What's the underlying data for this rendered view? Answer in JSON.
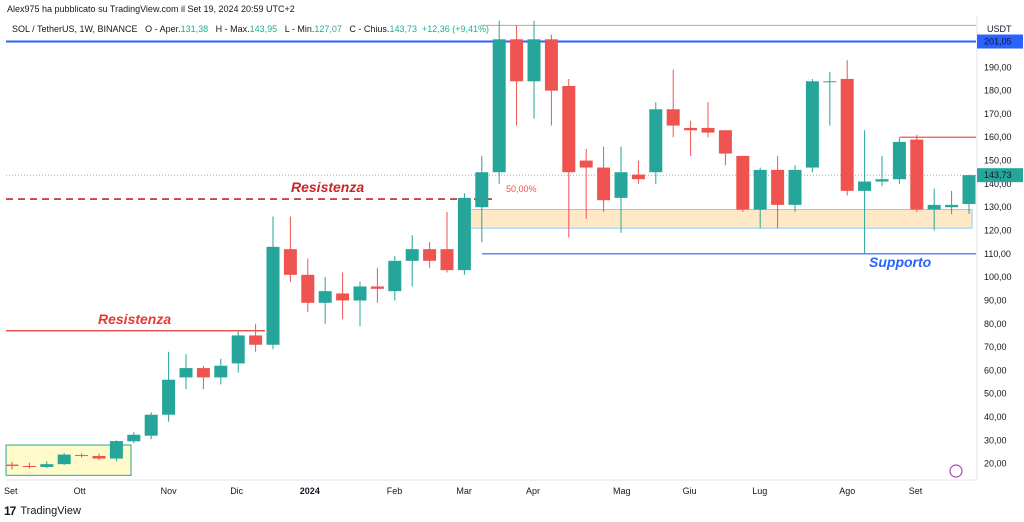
{
  "header": {
    "publisher": "Alex975 ha pubblicato su TradingView.com il Set 19, 2024 20:59 UTC+2",
    "symbol": "SOL / TetherUS, 1W, BINANCE",
    "open_label": "O - Aper.",
    "open": "131,38",
    "high_label": "H - Max.",
    "high": "143,95",
    "low_label": "L - Min.",
    "low": "127,07",
    "close_label": "C - Chius.",
    "close": "143,73",
    "change": "+12,36 (+9,41%)",
    "unit": "USDT"
  },
  "footer": {
    "logo": "17",
    "brand": "TradingView"
  },
  "colors": {
    "up": "#26a69a",
    "down": "#ef5350",
    "resistance_high": "#2962ff",
    "support": "#2962ff",
    "resistance": "#f23645",
    "zone": "#ffe0b2"
  },
  "chart_data": {
    "type": "candlestick",
    "timeframe": "1W",
    "ylim": [
      13,
      212
    ],
    "yticks": [
      20,
      30,
      40,
      50,
      60,
      70,
      80,
      90,
      100,
      110,
      120,
      130,
      140,
      150,
      160,
      170,
      180,
      190
    ],
    "ytick_labels": [
      "20,00",
      "30,00",
      "40,00",
      "50,00",
      "60,00",
      "70,00",
      "80,00",
      "90,00",
      "100,00",
      "110,00",
      "120,00",
      "130,00",
      "140,00",
      "150,00",
      "160,00",
      "170,00",
      "180,00",
      "190,00"
    ],
    "xtick_labels": [
      {
        "label": "Set",
        "idx": 0,
        "bold": false
      },
      {
        "label": "Ott",
        "idx": 4,
        "bold": false
      },
      {
        "label": "Nov",
        "idx": 9,
        "bold": false
      },
      {
        "label": "Dic",
        "idx": 13,
        "bold": false
      },
      {
        "label": "2024",
        "idx": 17,
        "bold": true
      },
      {
        "label": "Feb",
        "idx": 22,
        "bold": false
      },
      {
        "label": "Mar",
        "idx": 26,
        "bold": false
      },
      {
        "label": "Apr",
        "idx": 30,
        "bold": false
      },
      {
        "label": "Mag",
        "idx": 35,
        "bold": false
      },
      {
        "label": "Giu",
        "idx": 39,
        "bold": false
      },
      {
        "label": "Lug",
        "idx": 43,
        "bold": false
      },
      {
        "label": "Ago",
        "idx": 48,
        "bold": false
      },
      {
        "label": "Set",
        "idx": 52,
        "bold": false
      }
    ],
    "candles": [
      {
        "o": 19.6,
        "h": 20.8,
        "l": 17.5,
        "c": 19.0
      },
      {
        "o": 19.0,
        "h": 20.4,
        "l": 17.9,
        "c": 18.6
      },
      {
        "o": 18.6,
        "h": 21.0,
        "l": 18.1,
        "c": 19.8
      },
      {
        "o": 19.8,
        "h": 24.5,
        "l": 19.4,
        "c": 23.9
      },
      {
        "o": 23.7,
        "h": 24.5,
        "l": 22.7,
        "c": 23.4
      },
      {
        "o": 23.3,
        "h": 24.3,
        "l": 21.5,
        "c": 22.2
      },
      {
        "o": 22.2,
        "h": 30.0,
        "l": 21.0,
        "c": 29.7
      },
      {
        "o": 29.6,
        "h": 33.5,
        "l": 28.8,
        "c": 32.4
      },
      {
        "o": 32.0,
        "h": 42.0,
        "l": 30.5,
        "c": 41.0
      },
      {
        "o": 41.0,
        "h": 68.0,
        "l": 38.0,
        "c": 56.0
      },
      {
        "o": 57.0,
        "h": 67.0,
        "l": 52.0,
        "c": 61.0
      },
      {
        "o": 61.0,
        "h": 62.0,
        "l": 52.0,
        "c": 57.0
      },
      {
        "o": 57.0,
        "h": 65.0,
        "l": 54.0,
        "c": 62.0
      },
      {
        "o": 63.0,
        "h": 77.0,
        "l": 59.0,
        "c": 75.0
      },
      {
        "o": 75.0,
        "h": 80.0,
        "l": 68.0,
        "c": 71.0
      },
      {
        "o": 71.0,
        "h": 126.0,
        "l": 69.0,
        "c": 113.0
      },
      {
        "o": 112.0,
        "h": 126.0,
        "l": 98.0,
        "c": 101.0
      },
      {
        "o": 101.0,
        "h": 108.0,
        "l": 85.0,
        "c": 89.0
      },
      {
        "o": 89.0,
        "h": 100.0,
        "l": 80.0,
        "c": 94.0
      },
      {
        "o": 93.0,
        "h": 102.0,
        "l": 82.0,
        "c": 90.0
      },
      {
        "o": 90.0,
        "h": 98.0,
        "l": 79.0,
        "c": 96.0
      },
      {
        "o": 96.0,
        "h": 104.0,
        "l": 89.0,
        "c": 95.0
      },
      {
        "o": 94.0,
        "h": 109.0,
        "l": 90.0,
        "c": 107.0
      },
      {
        "o": 107.0,
        "h": 118.0,
        "l": 96.0,
        "c": 112.0
      },
      {
        "o": 112.0,
        "h": 115.0,
        "l": 104.0,
        "c": 107.0
      },
      {
        "o": 112.0,
        "h": 128.0,
        "l": 102.0,
        "c": 103.0
      },
      {
        "o": 103.0,
        "h": 136.0,
        "l": 101.0,
        "c": 134.0
      },
      {
        "o": 130.0,
        "h": 152.0,
        "l": 115.0,
        "c": 145.0
      },
      {
        "o": 145.0,
        "h": 210.0,
        "l": 140.0,
        "c": 202.0
      },
      {
        "o": 202.0,
        "h": 208.0,
        "l": 165.0,
        "c": 184.0
      },
      {
        "o": 184.0,
        "h": 210.0,
        "l": 168.0,
        "c": 202.0
      },
      {
        "o": 202.0,
        "h": 204.0,
        "l": 165.0,
        "c": 180.0
      },
      {
        "o": 182.0,
        "h": 185.0,
        "l": 117.0,
        "c": 145.0
      },
      {
        "o": 150.0,
        "h": 155.0,
        "l": 125.0,
        "c": 147.0
      },
      {
        "o": 147.0,
        "h": 156.0,
        "l": 128.0,
        "c": 133.0
      },
      {
        "o": 134.0,
        "h": 156.0,
        "l": 119.0,
        "c": 145.0
      },
      {
        "o": 144.0,
        "h": 150.0,
        "l": 140.0,
        "c": 142.0
      },
      {
        "o": 145.0,
        "h": 175.0,
        "l": 140.0,
        "c": 172.0
      },
      {
        "o": 172.0,
        "h": 189.0,
        "l": 160.0,
        "c": 165.0
      },
      {
        "o": 164.0,
        "h": 167.0,
        "l": 152.0,
        "c": 163.0
      },
      {
        "o": 164.0,
        "h": 175.0,
        "l": 160.0,
        "c": 162.0
      },
      {
        "o": 163.0,
        "h": 163.0,
        "l": 148.0,
        "c": 153.0
      },
      {
        "o": 152.0,
        "h": 152.0,
        "l": 128.0,
        "c": 129.0
      },
      {
        "o": 129.0,
        "h": 147.0,
        "l": 121.0,
        "c": 146.0
      },
      {
        "o": 146.0,
        "h": 152.0,
        "l": 121.0,
        "c": 131.0
      },
      {
        "o": 131.0,
        "h": 148.0,
        "l": 128.0,
        "c": 146.0
      },
      {
        "o": 147.0,
        "h": 185.0,
        "l": 145.0,
        "c": 184.0
      },
      {
        "o": 184.0,
        "h": 188.0,
        "l": 165.0,
        "c": 184.0
      },
      {
        "o": 185.0,
        "h": 193.0,
        "l": 135.0,
        "c": 137.0
      },
      {
        "o": 137.0,
        "h": 163.0,
        "l": 110.0,
        "c": 141.0
      },
      {
        "o": 141.0,
        "h": 152.0,
        "l": 139.0,
        "c": 142.0
      },
      {
        "o": 142.0,
        "h": 160.0,
        "l": 140.0,
        "c": 158.0
      },
      {
        "o": 159.0,
        "h": 161.0,
        "l": 128.0,
        "c": 129.0
      },
      {
        "o": 129.0,
        "h": 138.0,
        "l": 120.0,
        "c": 131.0
      },
      {
        "o": 130.0,
        "h": 137.0,
        "l": 127.0,
        "c": 131.0
      },
      {
        "o": 131.38,
        "h": 143.95,
        "l": 127.07,
        "c": 143.73
      }
    ],
    "levels": [
      {
        "name": "high-resistance-line",
        "price": 201.05,
        "label": "201,05",
        "color": "#2962ff",
        "style": "solid"
      },
      {
        "name": "resistance-line-dashed",
        "price": 133.5,
        "label": "Resistenza",
        "color": "#c62828",
        "style": "dashed"
      },
      {
        "name": "resistance-line-lower",
        "price": 77.0,
        "label": "Resistenza",
        "color": "#e53935",
        "style": "solid"
      },
      {
        "name": "support-line",
        "price": 110.0,
        "label": "Supporto",
        "color": "#2962ff",
        "style": "solid"
      },
      {
        "name": "red-level-line",
        "price": 160.0,
        "label": "",
        "color": "#ef5350",
        "style": "solid"
      }
    ],
    "zone": {
      "price_low": 121.0,
      "price_high": 129.0,
      "color": "#ffe0b2"
    },
    "fib_label": "50,00%",
    "fib_price": 133.5,
    "current_price": {
      "value": 143.73,
      "label": "143,73"
    },
    "price_label_201": "201,05"
  }
}
